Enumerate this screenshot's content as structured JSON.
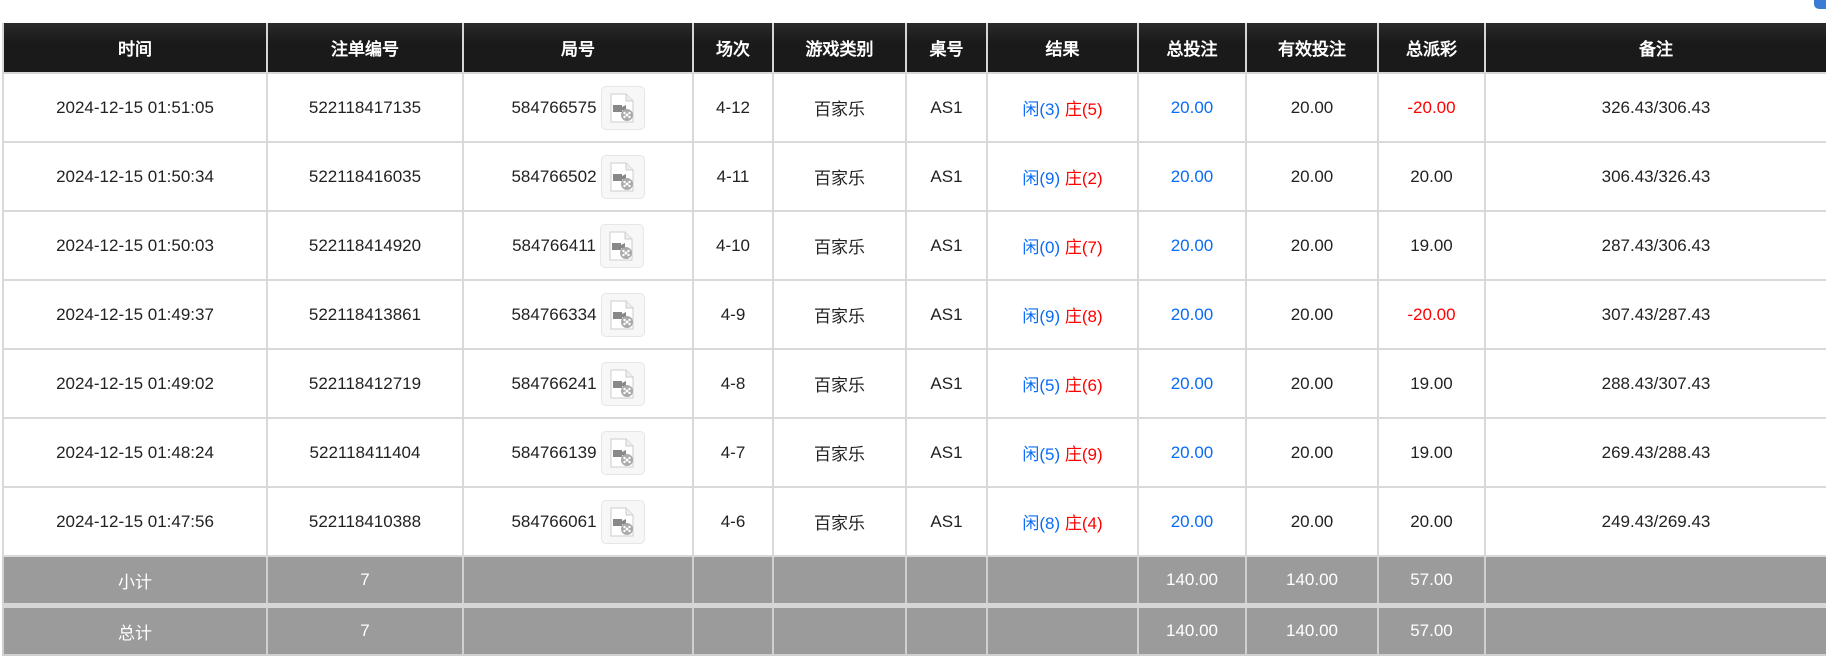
{
  "headers": [
    "时间",
    "注单编号",
    "局号",
    "场次",
    "游戏类别",
    "桌号",
    "结果",
    "总投注",
    "有效投注",
    "总派彩",
    "备注"
  ],
  "colors": {
    "header_bg": "#1c1c1c",
    "player": "#0a6cf5",
    "banker": "#ff0000",
    "negative": "#ff0000",
    "summary_bg": "#9b9b9b"
  },
  "rows": [
    {
      "time": "2024-12-15 01:51:05",
      "order": "522118417135",
      "round": "584766575",
      "shoe": "4-12",
      "game": "百家乐",
      "table": "AS1",
      "player": "闲(3)",
      "banker": "庄(5)",
      "bet": "20.00",
      "valid": "20.00",
      "payout": "-20.00",
      "note": "326.43/306.43"
    },
    {
      "time": "2024-12-15 01:50:34",
      "order": "522118416035",
      "round": "584766502",
      "shoe": "4-11",
      "game": "百家乐",
      "table": "AS1",
      "player": "闲(9)",
      "banker": "庄(2)",
      "bet": "20.00",
      "valid": "20.00",
      "payout": "20.00",
      "note": "306.43/326.43"
    },
    {
      "time": "2024-12-15 01:50:03",
      "order": "522118414920",
      "round": "584766411",
      "shoe": "4-10",
      "game": "百家乐",
      "table": "AS1",
      "player": "闲(0)",
      "banker": "庄(7)",
      "bet": "20.00",
      "valid": "20.00",
      "payout": "19.00",
      "note": "287.43/306.43"
    },
    {
      "time": "2024-12-15 01:49:37",
      "order": "522118413861",
      "round": "584766334",
      "shoe": "4-9",
      "game": "百家乐",
      "table": "AS1",
      "player": "闲(9)",
      "banker": "庄(8)",
      "bet": "20.00",
      "valid": "20.00",
      "payout": "-20.00",
      "note": "307.43/287.43"
    },
    {
      "time": "2024-12-15 01:49:02",
      "order": "522118412719",
      "round": "584766241",
      "shoe": "4-8",
      "game": "百家乐",
      "table": "AS1",
      "player": "闲(5)",
      "banker": "庄(6)",
      "bet": "20.00",
      "valid": "20.00",
      "payout": "19.00",
      "note": "288.43/307.43"
    },
    {
      "time": "2024-12-15 01:48:24",
      "order": "522118411404",
      "round": "584766139",
      "shoe": "4-7",
      "game": "百家乐",
      "table": "AS1",
      "player": "闲(5)",
      "banker": "庄(9)",
      "bet": "20.00",
      "valid": "20.00",
      "payout": "19.00",
      "note": "269.43/288.43"
    },
    {
      "time": "2024-12-15 01:47:56",
      "order": "522118410388",
      "round": "584766061",
      "shoe": "4-6",
      "game": "百家乐",
      "table": "AS1",
      "player": "闲(8)",
      "banker": "庄(4)",
      "bet": "20.00",
      "valid": "20.00",
      "payout": "20.00",
      "note": "249.43/269.43"
    }
  ],
  "subtotal": {
    "label": "小计",
    "count": "7",
    "bet": "140.00",
    "valid": "140.00",
    "payout": "57.00"
  },
  "total": {
    "label": "总计",
    "count": "7",
    "bet": "140.00",
    "valid": "140.00",
    "payout": "57.00"
  }
}
